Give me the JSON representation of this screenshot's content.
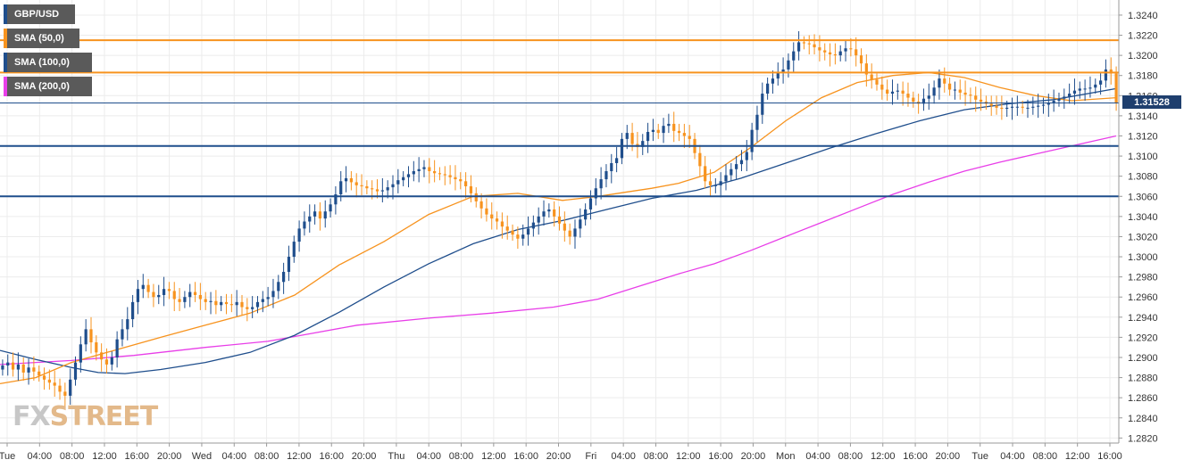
{
  "legend": [
    {
      "label": "GBP/USD",
      "color": "#1f4e8c"
    },
    {
      "label": "SMA (50,0)",
      "color": "#f7931e"
    },
    {
      "label": "SMA (100,0)",
      "color": "#1f4e8c"
    },
    {
      "label": "SMA (200,0)",
      "color": "#e83ee8"
    }
  ],
  "watermark": {
    "part1": "FX",
    "part2": "STREET"
  },
  "chart_data": {
    "type": "candlestick",
    "title": "",
    "xlabel": "",
    "ylabel": "",
    "ylim": [
      1.2815,
      1.3255
    ],
    "y_ticks": [
      "1.2820",
      "1.2840",
      "1.2860",
      "1.2880",
      "1.2900",
      "1.2920",
      "1.2940",
      "1.2960",
      "1.2980",
      "1.3000",
      "1.3020",
      "1.3040",
      "1.3060",
      "1.3080",
      "1.3100",
      "1.3120",
      "1.3140",
      "1.3160",
      "1.3180",
      "1.3200",
      "1.3220",
      "1.3240"
    ],
    "x_ticks": [
      "Tue",
      "04:00",
      "08:00",
      "12:00",
      "16:00",
      "20:00",
      "Wed",
      "04:00",
      "08:00",
      "12:00",
      "16:00",
      "20:00",
      "Thu",
      "04:00",
      "08:00",
      "12:00",
      "16:00",
      "20:00",
      "Fri",
      "04:00",
      "08:00",
      "12:00",
      "16:00",
      "20:00",
      "Mon",
      "04:00",
      "08:00",
      "12:00",
      "16:00",
      "20:00",
      "Tue",
      "04:00",
      "08:00",
      "12:00",
      "16:00"
    ],
    "last_price": "1.31528",
    "grid": true,
    "up_color": "#1f4e8c",
    "down_color": "#f7931e",
    "horizontal_levels": [
      {
        "value": 1.3215,
        "color": "#f7931e",
        "style": "resistance"
      },
      {
        "value": 1.3183,
        "color": "#f7931e",
        "style": "resistance"
      },
      {
        "value": 1.311,
        "color": "#1f4e8c",
        "style": "support"
      },
      {
        "value": 1.306,
        "color": "#1f4e8c",
        "style": "support"
      },
      {
        "value": 1.31528,
        "color": "#1f4e8c",
        "style": "last-price"
      }
    ],
    "closes": [
      1.2892,
      1.2895,
      1.2888,
      1.2893,
      1.2885,
      1.289,
      1.2886,
      1.2882,
      1.2878,
      1.2875,
      1.2872,
      1.2866,
      1.2862,
      1.2878,
      1.2895,
      1.2913,
      1.2928,
      1.2915,
      1.2905,
      1.2898,
      1.2893,
      1.29,
      1.2918,
      1.2928,
      1.2938,
      1.2955,
      1.2968,
      1.2972,
      1.2965,
      1.296,
      1.2962,
      1.2968,
      1.2966,
      1.2958,
      1.2955,
      1.296,
      1.2965,
      1.2962,
      1.2958,
      1.2955,
      1.2956,
      1.2952,
      1.2955,
      1.2953,
      1.2952,
      1.2955,
      1.295,
      1.2948,
      1.295,
      1.2955,
      1.2958,
      1.296,
      1.2966,
      1.2975,
      1.2985,
      1.3,
      1.3015,
      1.3028,
      1.3035,
      1.304,
      1.3045,
      1.3038,
      1.3045,
      1.3052,
      1.3062,
      1.3075,
      1.3078,
      1.3074,
      1.3071,
      1.307,
      1.3068,
      1.3067,
      1.3065,
      1.3066,
      1.3069,
      1.3072,
      1.3076,
      1.3079,
      1.3082,
      1.3085,
      1.3087,
      1.3089,
      1.3085,
      1.3083,
      1.3082,
      1.3081,
      1.3079,
      1.3077,
      1.3075,
      1.307,
      1.3063,
      1.3055,
      1.3048,
      1.3042,
      1.3038,
      1.3035,
      1.303,
      1.3026,
      1.3022,
      1.3018,
      1.3022,
      1.3028,
      1.3034,
      1.304,
      1.3045,
      1.3047,
      1.304,
      1.3033,
      1.3026,
      1.302,
      1.3028,
      1.3037,
      1.3047,
      1.3058,
      1.3068,
      1.3077,
      1.3085,
      1.3093,
      1.3098,
      1.3117,
      1.3123,
      1.3112,
      1.3109,
      1.3115,
      1.3124,
      1.3126,
      1.3123,
      1.313,
      1.3132,
      1.3125,
      1.3123,
      1.312,
      1.3117,
      1.3103,
      1.309,
      1.3075,
      1.3071,
      1.3071,
      1.3075,
      1.3081,
      1.3087,
      1.3092,
      1.3096,
      1.3104,
      1.3126,
      1.3141,
      1.3162,
      1.3172,
      1.3177,
      1.3183,
      1.3186,
      1.3195,
      1.3204,
      1.3213,
      1.3212,
      1.3211,
      1.3208,
      1.3205,
      1.3203,
      1.3201,
      1.32,
      1.3204,
      1.3207,
      1.3206,
      1.32,
      1.3192,
      1.3181,
      1.3176,
      1.3171,
      1.3166,
      1.3162,
      1.3164,
      1.3165,
      1.3162,
      1.3158,
      1.3154,
      1.3152,
      1.3157,
      1.316,
      1.3168,
      1.3177,
      1.3172,
      1.3166,
      1.3166,
      1.3163,
      1.3161,
      1.316,
      1.3156,
      1.3154,
      1.3152,
      1.315,
      1.3148,
      1.3147,
      1.3148,
      1.3149,
      1.3149,
      1.3148,
      1.3148,
      1.3149,
      1.315,
      1.3151,
      1.3153,
      1.3155,
      1.3157,
      1.3159,
      1.3162,
      1.3165,
      1.3167,
      1.3167,
      1.3168,
      1.3171,
      1.3175,
      1.3186,
      1.3182,
      1.3153
    ],
    "sma_50": [
      [
        0,
        1.2874
      ],
      [
        40,
        1.288
      ],
      [
        80,
        1.2895
      ],
      [
        120,
        1.2905
      ],
      [
        180,
        1.292
      ],
      [
        230,
        1.2932
      ],
      [
        280,
        1.2944
      ],
      [
        330,
        1.2962
      ],
      [
        380,
        1.2992
      ],
      [
        430,
        1.3015
      ],
      [
        480,
        1.3042
      ],
      [
        530,
        1.306
      ],
      [
        580,
        1.3063
      ],
      [
        630,
        1.3056
      ],
      [
        670,
        1.306
      ],
      [
        700,
        1.3064
      ],
      [
        730,
        1.3068
      ],
      [
        760,
        1.3073
      ],
      [
        800,
        1.3084
      ],
      [
        840,
        1.3108
      ],
      [
        880,
        1.3135
      ],
      [
        920,
        1.3158
      ],
      [
        960,
        1.3173
      ],
      [
        1000,
        1.318
      ],
      [
        1040,
        1.3183
      ],
      [
        1080,
        1.3178
      ],
      [
        1120,
        1.3168
      ],
      [
        1160,
        1.316
      ],
      [
        1200,
        1.3155
      ],
      [
        1250,
        1.3158
      ]
    ],
    "sma_100": [
      [
        0,
        1.2907
      ],
      [
        40,
        1.2898
      ],
      [
        80,
        1.289
      ],
      [
        110,
        1.2885
      ],
      [
        140,
        1.2884
      ],
      [
        180,
        1.2888
      ],
      [
        230,
        1.2895
      ],
      [
        280,
        1.2905
      ],
      [
        330,
        1.2922
      ],
      [
        380,
        1.2945
      ],
      [
        430,
        1.297
      ],
      [
        480,
        1.2993
      ],
      [
        530,
        1.3013
      ],
      [
        580,
        1.3027
      ],
      [
        630,
        1.3036
      ],
      [
        680,
        1.3047
      ],
      [
        730,
        1.3058
      ],
      [
        780,
        1.3066
      ],
      [
        830,
        1.3078
      ],
      [
        880,
        1.3093
      ],
      [
        930,
        1.3108
      ],
      [
        980,
        1.3122
      ],
      [
        1030,
        1.3135
      ],
      [
        1080,
        1.3146
      ],
      [
        1130,
        1.3152
      ],
      [
        1180,
        1.3156
      ],
      [
        1250,
        1.3167
      ]
    ],
    "sma_200": [
      [
        0,
        1.2893
      ],
      [
        80,
        1.2897
      ],
      [
        150,
        1.2902
      ],
      [
        230,
        1.291
      ],
      [
        300,
        1.2916
      ],
      [
        350,
        1.2924
      ],
      [
        400,
        1.2932
      ],
      [
        480,
        1.2939
      ],
      [
        550,
        1.2944
      ],
      [
        620,
        1.295
      ],
      [
        670,
        1.2958
      ],
      [
        720,
        1.2972
      ],
      [
        760,
        1.2983
      ],
      [
        800,
        1.2993
      ],
      [
        840,
        1.3006
      ],
      [
        880,
        1.302
      ],
      [
        920,
        1.3034
      ],
      [
        960,
        1.3048
      ],
      [
        1000,
        1.3062
      ],
      [
        1040,
        1.3074
      ],
      [
        1080,
        1.3085
      ],
      [
        1120,
        1.3094
      ],
      [
        1160,
        1.3102
      ],
      [
        1200,
        1.311
      ],
      [
        1250,
        1.312
      ]
    ]
  }
}
